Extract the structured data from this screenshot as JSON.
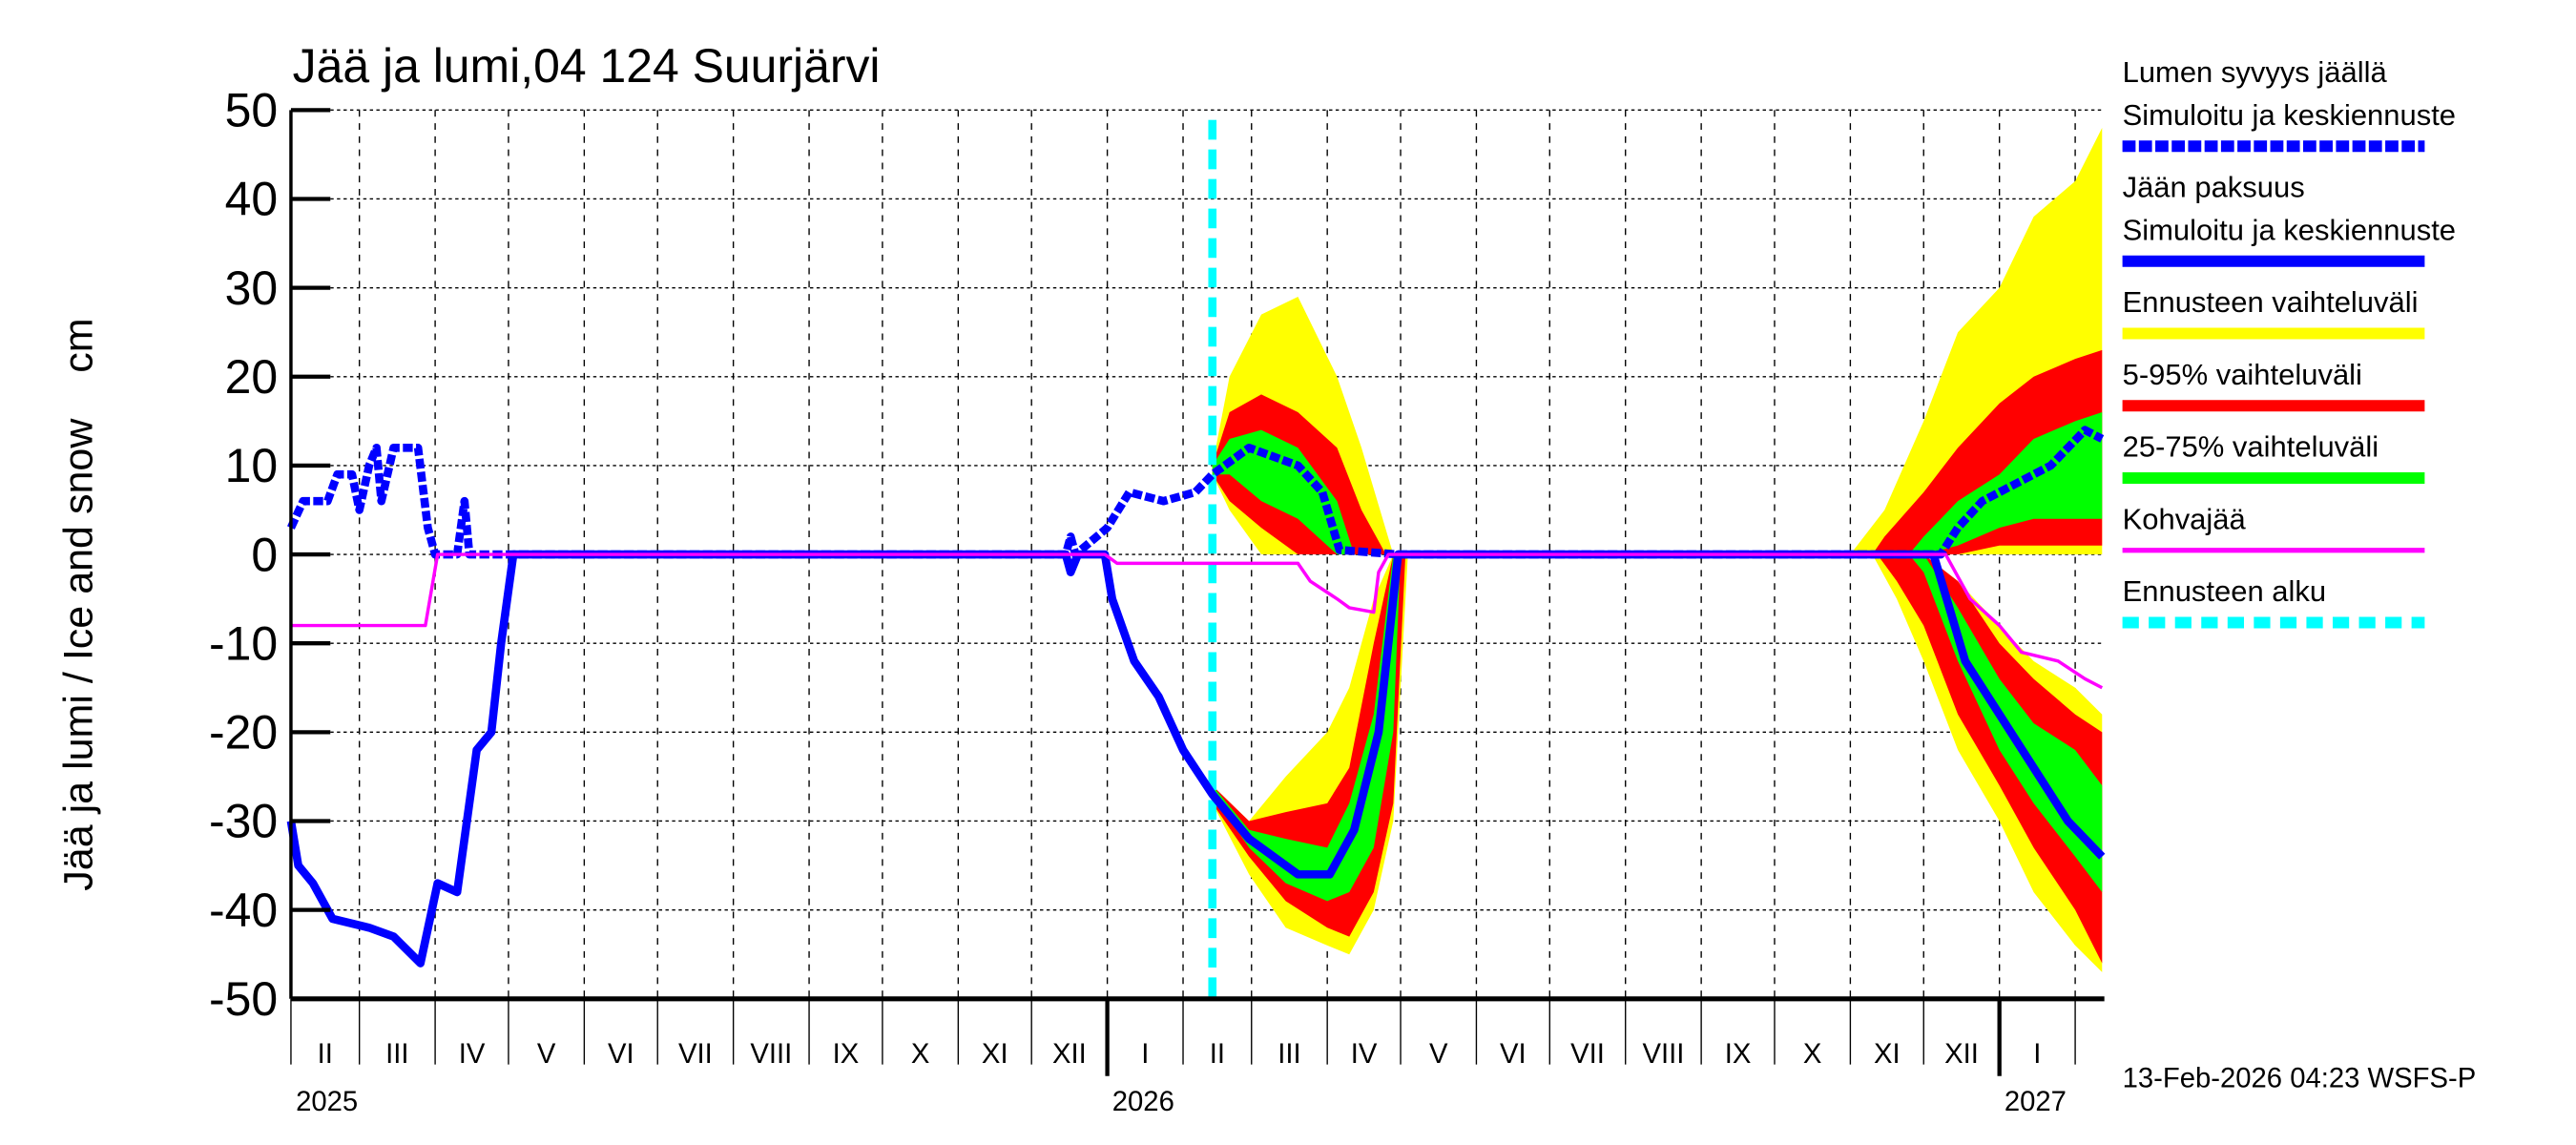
{
  "chart_data": {
    "type": "area",
    "title": "Jää ja lumi,04 124 Suurjärvi",
    "ylabel": "Jää ja lumi / Ice and snow    cm",
    "ylim": [
      -50,
      50
    ],
    "yticks": [
      -50,
      -40,
      -30,
      -20,
      -10,
      0,
      10,
      20,
      30,
      40,
      50
    ],
    "xlim": [
      "2025-02-01",
      "2027-02-13"
    ],
    "grid": true,
    "month_labels": [
      "II",
      "III",
      "IV",
      "V",
      "VI",
      "VII",
      "VIII",
      "IX",
      "X",
      "XI",
      "XII",
      "I",
      "II",
      "III",
      "IV",
      "V",
      "VI",
      "VII",
      "VIII",
      "IX",
      "X",
      "XI",
      "XII",
      "I"
    ],
    "month_starts": [
      "2025-02-01",
      "2025-03-01",
      "2025-04-01",
      "2025-05-01",
      "2025-06-01",
      "2025-07-01",
      "2025-08-01",
      "2025-09-01",
      "2025-10-01",
      "2025-11-01",
      "2025-12-01",
      "2026-01-01",
      "2026-02-01",
      "2026-03-01",
      "2026-04-01",
      "2026-05-01",
      "2026-06-01",
      "2026-07-01",
      "2026-08-01",
      "2026-09-01",
      "2026-10-01",
      "2026-11-01",
      "2026-12-01",
      "2027-01-01",
      "2027-02-01"
    ],
    "year_labels": [
      {
        "year": "2025",
        "date": "2025-02-01"
      },
      {
        "year": "2026",
        "date": "2026-01-01"
      },
      {
        "year": "2027",
        "date": "2027-01-01"
      }
    ],
    "forecast_start": "2026-02-13",
    "legend_placement": "right",
    "series": [
      {
        "name": "Lumen syvyys jäällä Simuloitu ja keskiennuste",
        "color": "#0000ff",
        "style": "dashed",
        "points": [
          [
            "2025-02-01",
            3
          ],
          [
            "2025-02-06",
            6
          ],
          [
            "2025-02-16",
            6
          ],
          [
            "2025-02-20",
            9
          ],
          [
            "2025-02-26",
            9
          ],
          [
            "2025-03-01",
            5
          ],
          [
            "2025-03-05",
            10
          ],
          [
            "2025-03-08",
            12
          ],
          [
            "2025-03-10",
            6
          ],
          [
            "2025-03-15",
            12
          ],
          [
            "2025-03-25",
            12
          ],
          [
            "2025-03-29",
            3
          ],
          [
            "2025-04-01",
            0
          ],
          [
            "2025-04-10",
            0
          ],
          [
            "2025-04-13",
            6
          ],
          [
            "2025-04-15",
            0
          ],
          [
            "2025-12-15",
            0
          ],
          [
            "2025-12-17",
            2
          ],
          [
            "2025-12-19",
            0
          ],
          [
            "2026-01-01",
            3
          ],
          [
            "2026-01-10",
            7
          ],
          [
            "2026-01-24",
            6
          ],
          [
            "2026-02-06",
            7
          ],
          [
            "2026-02-13",
            9
          ],
          [
            "2026-02-28",
            12
          ],
          [
            "2026-03-20",
            10
          ],
          [
            "2026-03-30",
            7
          ],
          [
            "2026-04-06",
            0.5
          ],
          [
            "2026-04-30",
            0
          ],
          [
            "2026-12-08",
            0
          ],
          [
            "2026-12-15",
            3
          ],
          [
            "2026-12-25",
            6
          ],
          [
            "2027-01-08",
            8
          ],
          [
            "2027-01-22",
            10
          ],
          [
            "2027-02-05",
            14
          ],
          [
            "2027-02-12",
            13
          ]
        ]
      },
      {
        "name": "Jään paksuus Simuloitu ja keskiennuste",
        "color": "#0000ff",
        "style": "solid",
        "points": [
          [
            "2025-02-01",
            -30
          ],
          [
            "2025-02-04",
            -35
          ],
          [
            "2025-02-10",
            -37
          ],
          [
            "2025-02-18",
            -41
          ],
          [
            "2025-03-05",
            -42
          ],
          [
            "2025-03-15",
            -43
          ],
          [
            "2025-03-26",
            -46
          ],
          [
            "2025-04-02",
            -37
          ],
          [
            "2025-04-10",
            -38
          ],
          [
            "2025-04-18",
            -22
          ],
          [
            "2025-04-24",
            -20
          ],
          [
            "2025-04-28",
            -10
          ],
          [
            "2025-05-03",
            0
          ],
          [
            "2025-12-15",
            0
          ],
          [
            "2025-12-17",
            -2
          ],
          [
            "2025-12-20",
            0
          ],
          [
            "2025-12-31",
            0
          ],
          [
            "2026-01-03",
            -5
          ],
          [
            "2026-01-12",
            -12
          ],
          [
            "2026-01-22",
            -16
          ],
          [
            "2026-02-01",
            -22
          ],
          [
            "2026-02-13",
            -27
          ],
          [
            "2026-02-28",
            -32
          ],
          [
            "2026-03-20",
            -36
          ],
          [
            "2026-04-02",
            -36
          ],
          [
            "2026-04-12",
            -31
          ],
          [
            "2026-04-22",
            -20
          ],
          [
            "2026-04-30",
            0
          ],
          [
            "2026-12-05",
            0
          ],
          [
            "2026-12-18",
            -12
          ],
          [
            "2027-01-01",
            -18
          ],
          [
            "2027-01-15",
            -24
          ],
          [
            "2027-01-29",
            -30
          ],
          [
            "2027-02-12",
            -34
          ]
        ]
      },
      {
        "name": "Kohvajää",
        "color": "#ff00ff",
        "style": "solid",
        "points": [
          [
            "2025-02-01",
            -8
          ],
          [
            "2025-03-28",
            -8
          ],
          [
            "2025-04-02",
            0
          ],
          [
            "2025-12-31",
            0
          ],
          [
            "2026-01-05",
            -1
          ],
          [
            "2026-03-20",
            -1
          ],
          [
            "2026-03-25",
            -3
          ],
          [
            "2026-04-05",
            -5
          ],
          [
            "2026-04-10",
            -6
          ],
          [
            "2026-04-20",
            -6.5
          ],
          [
            "2026-04-22",
            -2
          ],
          [
            "2026-04-26",
            0
          ],
          [
            "2026-12-10",
            0
          ],
          [
            "2026-12-20",
            -5
          ],
          [
            "2027-01-01",
            -8
          ],
          [
            "2027-01-10",
            -11
          ],
          [
            "2027-01-25",
            -12
          ],
          [
            "2027-02-05",
            -14
          ],
          [
            "2027-02-12",
            -15
          ]
        ]
      }
    ],
    "bands": [
      {
        "name": "Ennusteen vaihteluväli",
        "color": "#ffff00",
        "segments": [
          [
            [
              "2026-02-13",
              -28,
              -26
            ],
            [
              "2026-02-28",
              -36,
              -30
            ],
            [
              "2026-03-15",
              -42,
              -25
            ],
            [
              "2026-04-01",
              -44,
              -20
            ],
            [
              "2026-04-10",
              -45,
              -15
            ],
            [
              "2026-04-20",
              -40,
              -5
            ],
            [
              "2026-04-28",
              -30,
              0
            ],
            [
              "2026-05-04",
              0,
              0
            ]
          ],
          [
            [
              "2026-02-13",
              9,
              10
            ],
            [
              "2026-02-20",
              5,
              20
            ],
            [
              "2026-03-05",
              0,
              27
            ],
            [
              "2026-03-20",
              0,
              29
            ],
            [
              "2026-04-05",
              0,
              20
            ],
            [
              "2026-04-15",
              0,
              12
            ],
            [
              "2026-04-28",
              0,
              0
            ]
          ],
          [
            [
              "2026-11-01",
              0,
              0
            ],
            [
              "2026-11-15",
              0,
              5
            ],
            [
              "2026-12-01",
              0,
              15
            ],
            [
              "2026-12-15",
              0,
              25
            ],
            [
              "2027-01-01",
              0,
              30
            ],
            [
              "2027-01-15",
              0,
              38
            ],
            [
              "2027-02-01",
              0,
              42
            ],
            [
              "2027-02-12",
              0,
              48
            ]
          ],
          [
            [
              "2026-11-10",
              0,
              0
            ],
            [
              "2026-11-20",
              -5,
              0
            ],
            [
              "2026-12-01",
              -12,
              0
            ],
            [
              "2026-12-15",
              -22,
              -3
            ],
            [
              "2027-01-01",
              -30,
              -8
            ],
            [
              "2027-01-15",
              -38,
              -12
            ],
            [
              "2027-02-01",
              -44,
              -15
            ],
            [
              "2027-02-12",
              -47,
              -18
            ]
          ]
        ]
      },
      {
        "name": "5-95% vaihteluväli",
        "color": "#ff0000",
        "segments": [
          [
            [
              "2026-02-13",
              -28,
              -26
            ],
            [
              "2026-02-28",
              -34,
              -30
            ],
            [
              "2026-03-15",
              -39,
              -29
            ],
            [
              "2026-04-01",
              -42,
              -28
            ],
            [
              "2026-04-10",
              -43,
              -24
            ],
            [
              "2026-04-20",
              -38,
              -10
            ],
            [
              "2026-04-28",
              -28,
              0
            ],
            [
              "2026-05-03",
              0,
              0
            ]
          ],
          [
            [
              "2026-02-13",
              9,
              10
            ],
            [
              "2026-02-20",
              6,
              16
            ],
            [
              "2026-03-05",
              3,
              18
            ],
            [
              "2026-03-20",
              0,
              16
            ],
            [
              "2026-04-05",
              0,
              12
            ],
            [
              "2026-04-15",
              0,
              5
            ],
            [
              "2026-04-25",
              0,
              0
            ]
          ],
          [
            [
              "2026-11-10",
              0,
              0
            ],
            [
              "2026-11-15",
              0,
              2
            ],
            [
              "2026-12-01",
              0,
              7
            ],
            [
              "2026-12-15",
              0,
              12
            ],
            [
              "2027-01-01",
              1,
              17
            ],
            [
              "2027-01-15",
              1,
              20
            ],
            [
              "2027-02-01",
              1,
              22
            ],
            [
              "2027-02-12",
              1,
              23
            ]
          ],
          [
            [
              "2026-11-12",
              0,
              0
            ],
            [
              "2026-11-20",
              -3,
              0
            ],
            [
              "2026-12-01",
              -8,
              0
            ],
            [
              "2026-12-15",
              -18,
              -3
            ],
            [
              "2027-01-01",
              -26,
              -10
            ],
            [
              "2027-01-15",
              -33,
              -14
            ],
            [
              "2027-02-01",
              -40,
              -18
            ],
            [
              "2027-02-12",
              -46,
              -20
            ]
          ]
        ]
      },
      {
        "name": "25-75% vaihteluväli",
        "color": "#00ff00",
        "segments": [
          [
            [
              "2026-02-13",
              -27,
              -26
            ],
            [
              "2026-02-28",
              -33,
              -31
            ],
            [
              "2026-03-15",
              -37,
              -32
            ],
            [
              "2026-04-01",
              -39,
              -33
            ],
            [
              "2026-04-10",
              -38,
              -28
            ],
            [
              "2026-04-20",
              -33,
              -18
            ],
            [
              "2026-04-28",
              -20,
              0
            ],
            [
              "2026-05-01",
              0,
              0
            ]
          ],
          [
            [
              "2026-02-13",
              9,
              10
            ],
            [
              "2026-02-20",
              9,
              13
            ],
            [
              "2026-03-05",
              6,
              14
            ],
            [
              "2026-03-20",
              4,
              12
            ],
            [
              "2026-04-05",
              0,
              6
            ],
            [
              "2026-04-12",
              0,
              0
            ]
          ],
          [
            [
              "2026-11-25",
              0,
              0
            ],
            [
              "2026-12-01",
              0,
              2
            ],
            [
              "2026-12-15",
              1,
              6
            ],
            [
              "2027-01-01",
              3,
              9
            ],
            [
              "2027-01-15",
              4,
              13
            ],
            [
              "2027-02-01",
              4,
              15
            ],
            [
              "2027-02-12",
              4,
              16
            ]
          ],
          [
            [
              "2026-11-25",
              0,
              0
            ],
            [
              "2026-12-01",
              -2,
              0
            ],
            [
              "2026-12-15",
              -12,
              -6
            ],
            [
              "2027-01-01",
              -22,
              -14
            ],
            [
              "2027-01-15",
              -28,
              -19
            ],
            [
              "2027-02-01",
              -34,
              -22
            ],
            [
              "2027-02-12",
              -38,
              -26
            ]
          ]
        ]
      }
    ]
  },
  "legend": [
    {
      "line1": "Lumen syvyys jäällä",
      "line2": "Simuloitu ja keskiennuste",
      "color": "#0000ff",
      "style": "dashed"
    },
    {
      "line1": "Jään paksuus",
      "line2": "Simuloitu ja keskiennuste",
      "color": "#0000ff",
      "style": "solid"
    },
    {
      "line1": "Ennusteen vaihteluväli",
      "color": "#ffff00",
      "style": "solid"
    },
    {
      "line1": "5-95% vaihteluväli",
      "color": "#ff0000",
      "style": "solid"
    },
    {
      "line1": "25-75% vaihteluväli",
      "color": "#00ff00",
      "style": "solid"
    },
    {
      "line1": "Kohvajää",
      "color": "#ff00ff",
      "style": "thin"
    },
    {
      "line1": "Ennusteen alku",
      "color": "#00ffff",
      "style": "dashed"
    }
  ],
  "footer": "13-Feb-2026 04:23 WSFS-P"
}
